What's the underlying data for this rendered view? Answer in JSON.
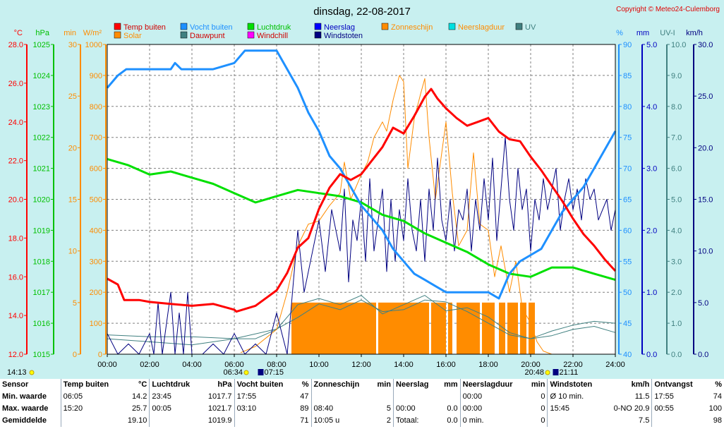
{
  "title": "dinsdag, 22-08-2017",
  "copyright": "Copyright © Meteo24-Culemborg",
  "colors": {
    "temp": "#ff0000",
    "humidity": "#1e90ff",
    "pressure": "#00e000",
    "rain": "#0000ff",
    "sunshine": "#ff8c00",
    "rainduration": "#00e0e0",
    "uv": "#408080",
    "solar": "#ff8c00",
    "dewpoint": "#408080",
    "windchill": "#ff00ff",
    "windgust": "#000080"
  },
  "legend": [
    {
      "label": "Temp buiten",
      "color": "#ff0000"
    },
    {
      "label": "Solar",
      "color": "#ff8c00"
    },
    {
      "label": "Vocht buiten",
      "color": "#1e90ff"
    },
    {
      "label": "Dauwpunt",
      "color": "#408080"
    },
    {
      "label": "Luchtdruk",
      "color": "#00e000"
    },
    {
      "label": "Windchill",
      "color": "#ff00ff"
    },
    {
      "label": "Neerslag",
      "color": "#0000ff"
    },
    {
      "label": "Windstoten",
      "color": "#000080"
    },
    {
      "label": "Zonneschijn",
      "color": "#ff8c00"
    },
    {
      "label": "Neerslagduur",
      "color": "#00e0e0"
    },
    {
      "label": "UV",
      "color": "#408080"
    }
  ],
  "chart_data": {
    "type": "line",
    "x_label_times": [
      "00:00",
      "02:00",
      "04:00",
      "06:00",
      "08:00",
      "10:00",
      "12:00",
      "14:00",
      "16:00",
      "18:00",
      "20:00",
      "22:00",
      "24:00"
    ],
    "axes": {
      "left": [
        {
          "unit": "°C",
          "color": "#ff0000",
          "range": [
            12,
            28
          ],
          "ticks": [
            "12.0",
            "14.0",
            "16.0",
            "18.0",
            "20.0",
            "22.0",
            "24.0",
            "26.0",
            "28.0"
          ]
        },
        {
          "unit": "hPa",
          "color": "#00c000",
          "range": [
            1015,
            1025
          ],
          "ticks": [
            "1015",
            "1016",
            "1017",
            "1018",
            "1019",
            "1020",
            "1021",
            "1022",
            "1023",
            "1024",
            "1025"
          ]
        },
        {
          "unit": "min",
          "color": "#ff8c00",
          "range": [
            0,
            30
          ],
          "ticks": [
            "0",
            "5",
            "10",
            "15",
            "20",
            "25",
            "30"
          ]
        },
        {
          "unit": "W/m²",
          "color": "#ff8c00",
          "range": [
            0,
            1000
          ],
          "ticks": [
            "0",
            "100",
            "200",
            "300",
            "400",
            "500",
            "600",
            "700",
            "800",
            "900",
            "1000"
          ]
        }
      ],
      "right": [
        {
          "unit": "%",
          "color": "#1e90ff",
          "range": [
            40,
            90
          ],
          "ticks": [
            "40",
            "45",
            "50",
            "55",
            "60",
            "65",
            "70",
            "75",
            "80",
            "85",
            "90"
          ]
        },
        {
          "unit": "mm",
          "color": "#0000c0",
          "range": [
            0,
            5
          ],
          "ticks": [
            "0.0",
            "1.0",
            "2.0",
            "3.0",
            "4.0",
            "5.0"
          ]
        },
        {
          "unit": "UV-I",
          "color": "#408080",
          "range": [
            0,
            10
          ],
          "ticks": [
            "0.0",
            "1.0",
            "2.0",
            "3.0",
            "4.0",
            "5.0",
            "6.0",
            "7.0",
            "8.0",
            "9.0",
            "10.0"
          ]
        },
        {
          "unit": "km/h",
          "color": "#000080",
          "range": [
            0,
            30
          ],
          "ticks": [
            "0.0",
            "5.0",
            "10.0",
            "15.0",
            "20.0",
            "25.0",
            "30.0"
          ]
        }
      ]
    },
    "series": [
      {
        "name": "Temp buiten",
        "axis": "°C",
        "hours": [
          0,
          0.5,
          0.8,
          1.5,
          2,
          3,
          4,
          5,
          6,
          6.1,
          7,
          8,
          8.5,
          9,
          9.5,
          10,
          10.5,
          11,
          11.5,
          12,
          12.5,
          13,
          13.5,
          14,
          14.5,
          15,
          15.3,
          15.6,
          16,
          16.5,
          17,
          17.5,
          18,
          18.5,
          19,
          19.5,
          20,
          20.5,
          21,
          21.5,
          22,
          22.5,
          23,
          23.5,
          24
        ],
        "values": [
          15.9,
          15.6,
          14.8,
          14.8,
          14.7,
          14.6,
          14.5,
          14.6,
          14.3,
          14.2,
          14.5,
          15.3,
          16.2,
          17.5,
          18.0,
          19.5,
          20.6,
          21.3,
          21.0,
          21.3,
          22.0,
          22.7,
          23.7,
          23.4,
          24.3,
          25.3,
          25.7,
          25.2,
          24.7,
          24.2,
          23.8,
          24.0,
          24.2,
          23.5,
          23.1,
          23.0,
          22.2,
          21.5,
          20.7,
          19.9,
          19.0,
          18.2,
          17.6,
          16.9,
          16.3
        ]
      },
      {
        "name": "Vocht buiten",
        "axis": "%",
        "hours": [
          0,
          0.5,
          0.9,
          1.5,
          2,
          3,
          3.2,
          3.5,
          4,
          5,
          6,
          6.5,
          7,
          7.5,
          8,
          8.5,
          9,
          9.5,
          10,
          10.5,
          11,
          11.5,
          12,
          12.5,
          13,
          13.5,
          14,
          14.5,
          15,
          15.5,
          16,
          16.5,
          17,
          17.5,
          18,
          18.5,
          19,
          19.5,
          20,
          20.5,
          21,
          21.5,
          22,
          22.5,
          23,
          23.5,
          24
        ],
        "values": [
          83,
          85,
          86,
          86,
          86,
          86,
          87,
          86,
          86,
          86,
          87,
          89,
          89,
          89,
          89,
          86,
          83,
          79,
          76,
          72,
          70,
          67,
          64,
          62,
          60,
          57,
          55,
          53,
          52,
          51,
          50,
          50,
          50,
          50,
          50,
          49,
          53,
          55,
          56,
          57,
          60,
          63,
          65,
          67,
          70,
          73,
          76
        ]
      },
      {
        "name": "Luchtdruk",
        "axis": "hPa",
        "hours": [
          0,
          1,
          2,
          3,
          4,
          5,
          6,
          7,
          8,
          9,
          10,
          11,
          12,
          13,
          14,
          15,
          16,
          17,
          18,
          19,
          20,
          21,
          22,
          23,
          24
        ],
        "values": [
          1021.3,
          1021.1,
          1020.8,
          1020.9,
          1020.7,
          1020.5,
          1020.2,
          1019.9,
          1020.1,
          1020.3,
          1020.2,
          1020.1,
          1019.9,
          1019.5,
          1019.3,
          1018.9,
          1018.6,
          1018.3,
          1017.9,
          1017.6,
          1017.5,
          1017.8,
          1017.8,
          1017.6,
          1017.4
        ]
      },
      {
        "name": "Solar",
        "axis": "W/m²",
        "hours": [
          6.3,
          7,
          8,
          8.5,
          9,
          9.5,
          10,
          10.5,
          11,
          11.2,
          11.5,
          12,
          12.3,
          12.6,
          13,
          13.2,
          13.5,
          13.8,
          14,
          14.2,
          14.5,
          14.8,
          15,
          15.2,
          15.5,
          16,
          16.3,
          16.6,
          17,
          17.3,
          17.6,
          18,
          18.3,
          18.6,
          19,
          19.3,
          19.6,
          20,
          20.3,
          20.6,
          21
        ],
        "values": [
          5,
          25,
          80,
          200,
          350,
          420,
          430,
          480,
          520,
          620,
          500,
          580,
          620,
          700,
          750,
          720,
          820,
          900,
          880,
          600,
          760,
          840,
          890,
          700,
          500,
          750,
          520,
          350,
          400,
          650,
          420,
          400,
          250,
          350,
          200,
          300,
          150,
          100,
          40,
          10,
          0
        ]
      },
      {
        "name": "Dauwpunt",
        "axis": "°C",
        "hours": [
          0,
          2,
          4,
          6,
          8,
          9,
          10,
          11,
          12,
          13,
          14,
          15,
          16,
          17,
          18,
          19,
          20,
          21,
          22,
          23,
          24
        ],
        "values": [
          13.0,
          12.9,
          12.9,
          12.8,
          13.3,
          13.9,
          14.6,
          14.3,
          14.8,
          14.2,
          14.3,
          14.8,
          14.7,
          14.2,
          13.6,
          13.0,
          12.8,
          13.2,
          13.5,
          13.7,
          13.6
        ]
      },
      {
        "name": "Windstoten",
        "axis": "km/h",
        "hours": [
          0,
          0.5,
          1,
          1.5,
          2,
          2.2,
          2.4,
          2.6,
          3,
          3.2,
          3.4,
          3.6,
          3.8,
          4,
          4.5,
          5,
          5.5,
          6,
          6.5,
          7,
          7.5,
          8,
          8.5,
          9,
          9.3,
          9.6,
          10,
          10.3,
          10.6,
          11,
          11.2,
          11.4,
          11.6,
          11.8,
          12,
          12.2,
          12.4,
          12.6,
          12.8,
          13,
          13.2,
          13.4,
          13.6,
          13.8,
          14,
          14.2,
          14.4,
          14.6,
          14.8,
          15,
          15.2,
          15.4,
          15.6,
          15.8,
          16,
          16.2,
          16.4,
          16.6,
          16.8,
          17,
          17.2,
          17.4,
          17.6,
          17.8,
          18,
          18.2,
          18.4,
          18.6,
          18.8,
          19,
          19.2,
          19.4,
          19.6,
          19.8,
          20,
          20.2,
          20.4,
          20.6,
          20.8,
          21,
          21.2,
          21.4,
          21.6,
          21.8,
          22,
          22.2,
          22.4,
          22.6,
          22.8,
          23,
          23.2,
          23.4,
          23.6,
          23.8,
          24
        ],
        "values": [
          2,
          0,
          1,
          0,
          2,
          0,
          5,
          0,
          6,
          0,
          4,
          0,
          6,
          0,
          0,
          1,
          0,
          2,
          0,
          1,
          0,
          4,
          0,
          12,
          6,
          9,
          13,
          8,
          14,
          10,
          16,
          7,
          13,
          11,
          15,
          9,
          17,
          10,
          13,
          16,
          8,
          15,
          9,
          14,
          11,
          17,
          12,
          10,
          15,
          9,
          16,
          12,
          19,
          13,
          11,
          15,
          10,
          14,
          13,
          16,
          10,
          15,
          12,
          17,
          13,
          19,
          11,
          16,
          21,
          15,
          12,
          18,
          14,
          16,
          10,
          15,
          13,
          17,
          14,
          16,
          18,
          12,
          15,
          17,
          14,
          16,
          13,
          17,
          15,
          16,
          13,
          14,
          15,
          12,
          14
        ]
      },
      {
        "name": "UV",
        "axis": "UV-I",
        "hours": [
          0,
          2,
          4,
          6,
          7,
          8,
          9,
          10,
          11,
          12,
          13,
          14,
          15,
          16,
          17,
          18,
          19,
          20,
          21,
          22,
          23,
          24
        ],
        "values": [
          0.5,
          0.4,
          0.3,
          0.5,
          0.5,
          0.8,
          1.6,
          1.8,
          1.6,
          1.9,
          1.3,
          1.6,
          1.9,
          1.4,
          1.5,
          1.2,
          0.7,
          0.5,
          0.6,
          0.8,
          0.9,
          0.7
        ]
      }
    ],
    "sunshine_bars": {
      "axis": "min",
      "value": 5,
      "segments": [
        [
          8.7,
          12.7
        ],
        [
          12.8,
          15.2
        ],
        [
          15.3,
          16.0
        ],
        [
          16.1,
          16.3
        ],
        [
          16.5,
          17.6
        ],
        [
          17.7,
          18.3
        ],
        [
          18.5,
          18.8
        ],
        [
          18.9,
          19.4
        ],
        [
          19.5,
          19.8
        ],
        [
          19.9,
          20.2
        ]
      ]
    },
    "events": [
      {
        "label": "06:34",
        "type": "sunrise"
      },
      {
        "label": "07:15",
        "type": "moon"
      },
      {
        "label": "20:48",
        "type": "sunset"
      },
      {
        "label": "21:11",
        "type": "moon"
      }
    ],
    "current_time": "14:13"
  },
  "summary": {
    "headers": {
      "sensor": "Sensor",
      "temp": "Temp buiten",
      "temp_unit": "°C",
      "pressure": "Luchtdruk",
      "pressure_unit": "hPa",
      "humidity": "Vocht buiten",
      "humidity_unit": "%",
      "sunshine": "Zonneschijn",
      "sunshine_unit": "min",
      "rain": "Neerslag",
      "rain_unit": "mm",
      "rainduration": "Neerslagduur",
      "rainduration_unit": "min",
      "gust": "Windstoten",
      "gust_unit": "km/h",
      "received": "Ontvangst",
      "received_unit": "%"
    },
    "rows": [
      {
        "label": "Min. waarde",
        "temp_time": "06:05",
        "temp_val": "14.2",
        "pressure_time": "23:45",
        "pressure_val": "1017.7",
        "humidity_time": "17:55",
        "humidity_val": "47",
        "sunshine_time": "",
        "sunshine_val": "",
        "rain_time": "",
        "rain_val": "",
        "rainduration_time": "00:00",
        "rainduration_val": "0",
        "gust_time": "Ø 10 min.",
        "gust_val": "11.5",
        "received_time": "17:55",
        "received_val": "74"
      },
      {
        "label": "Max. waarde",
        "temp_time": "15:20",
        "temp_val": "25.7",
        "pressure_time": "00:05",
        "pressure_val": "1021.7",
        "humidity_time": "03:10",
        "humidity_val": "89",
        "sunshine_time": "08:40",
        "sunshine_val": "5",
        "rain_time": "00:00",
        "rain_val": "0.0",
        "rainduration_time": "00:00",
        "rainduration_val": "0",
        "gust_time": "15:45",
        "gust_val": "0-NO 20.9",
        "received_time": "00:55",
        "received_val": "100"
      },
      {
        "label": "Gemiddelde",
        "temp_time": "",
        "temp_val": "19.10",
        "pressure_time": "",
        "pressure_val": "1019.9",
        "humidity_time": "",
        "humidity_val": "71",
        "sunshine_time": "10:05 u",
        "sunshine_val": "2",
        "rain_time": "Totaal:",
        "rain_val": "0.0",
        "rainduration_time": "0 min.",
        "rainduration_val": "0",
        "gust_time": "",
        "gust_val": "7.5",
        "received_time": "",
        "received_val": "98"
      }
    ]
  }
}
